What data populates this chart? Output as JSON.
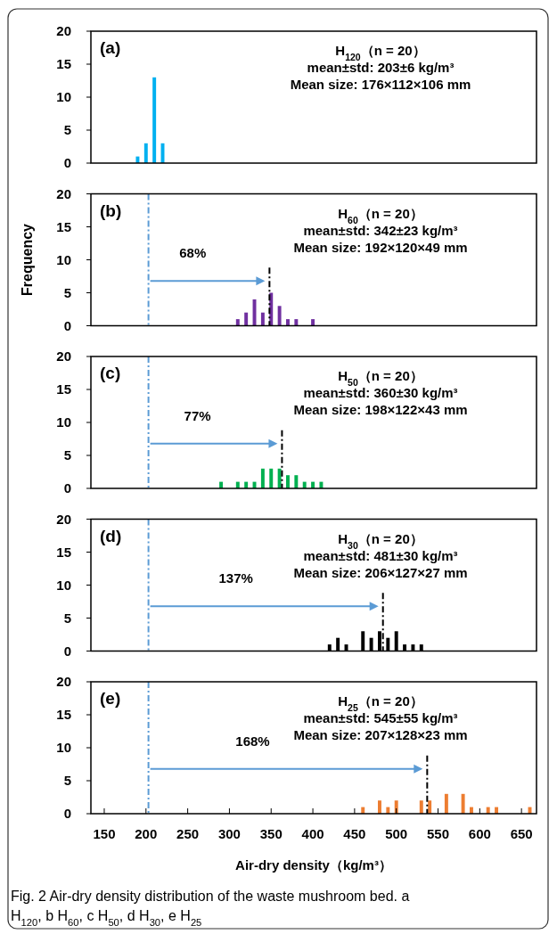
{
  "chart_data": [
    {
      "type": "bar",
      "title": "(a)",
      "x": [
        190,
        200,
        210,
        220
      ],
      "values": [
        1,
        3,
        13,
        3
      ],
      "color": "#00b0f0",
      "xlim": [
        134,
        668
      ],
      "ylim": [
        0,
        20
      ],
      "yticks": [
        0,
        5,
        10,
        15,
        20
      ],
      "tick_labels": "y",
      "annotations": [
        "H$_{120}$（n = 20）",
        "mean±std: 203±6 kg/m³",
        "Mean size: 176×112×106 mm"
      ]
    },
    {
      "type": "bar",
      "title": "(b)",
      "ylabel": "Frequency",
      "x": [
        310,
        320,
        330,
        340,
        350,
        360,
        370,
        380,
        400
      ],
      "values": [
        1,
        2,
        4,
        2,
        5,
        3,
        1,
        1,
        1
      ],
      "color": "#7030a0",
      "xlim": [
        134,
        668
      ],
      "ylim": [
        0,
        20
      ],
      "yticks": [
        0,
        5,
        10,
        15,
        20
      ],
      "tick_labels": "y",
      "ref_lines": [
        {
          "axis": "x",
          "value": 203,
          "color": "#5b9bd5",
          "line_style": "dashed"
        },
        {
          "axis": "x",
          "value": 348,
          "color": "#000000",
          "line_style": "dashed"
        }
      ],
      "annotations": [
        "H$_{60}$（n = 20）",
        "mean±std: 342±23 kg/m³",
        "Mean size: 192×120×49 mm",
        "68%"
      ]
    },
    {
      "type": "bar",
      "title": "(c)",
      "x": [
        290,
        310,
        320,
        330,
        340,
        350,
        360,
        370,
        380,
        390,
        400,
        410
      ],
      "values": [
        1,
        1,
        1,
        1,
        3,
        3,
        3,
        2,
        2,
        1,
        1,
        1
      ],
      "color": "#00b050",
      "xlim": [
        134,
        668
      ],
      "ylim": [
        0,
        20
      ],
      "yticks": [
        0,
        5,
        10,
        15,
        20
      ],
      "tick_labels": "y",
      "ref_lines": [
        {
          "axis": "x",
          "value": 203,
          "color": "#5b9bd5",
          "line_style": "dashed"
        },
        {
          "axis": "x",
          "value": 363,
          "color": "#000000",
          "line_style": "dashed"
        }
      ],
      "annotations": [
        "H$_{50}$（n = 20）",
        "mean±std: 360±30 kg/m³",
        "Mean size: 198×122×43 mm",
        "77%"
      ]
    },
    {
      "type": "bar",
      "title": "(d)",
      "x": [
        420,
        430,
        440,
        460,
        470,
        480,
        490,
        500,
        510,
        520,
        530
      ],
      "values": [
        1,
        2,
        1,
        3,
        2,
        3,
        2,
        3,
        1,
        1,
        1
      ],
      "color": "#000000",
      "xlim": [
        134,
        668
      ],
      "ylim": [
        0,
        20
      ],
      "yticks": [
        0,
        5,
        10,
        15,
        20
      ],
      "tick_labels": "y",
      "ref_lines": [
        {
          "axis": "x",
          "value": 203,
          "color": "#5b9bd5",
          "line_style": "dashed"
        },
        {
          "axis": "x",
          "value": 484,
          "color": "#000000",
          "line_style": "dashed"
        }
      ],
      "annotations": [
        "H$_{30}$（n = 20）",
        "mean±std: 481±30 kg/m³",
        "Mean size: 206×127×27 mm",
        "137%"
      ]
    },
    {
      "type": "bar",
      "title": "(e)",
      "xlabel": "Air-dry density（kg/m³）",
      "x": [
        460,
        480,
        490,
        500,
        530,
        540,
        560,
        580,
        590,
        610,
        620,
        660
      ],
      "values": [
        1,
        2,
        1,
        2,
        2,
        2,
        3,
        3,
        1,
        1,
        1,
        1
      ],
      "color": "#ed7d31",
      "xlim": [
        134,
        668
      ],
      "ylim": [
        0,
        20
      ],
      "yticks": [
        0,
        5,
        10,
        15,
        20
      ],
      "xticks": [
        150,
        200,
        250,
        300,
        350,
        400,
        450,
        500,
        550,
        600,
        650
      ],
      "ref_lines": [
        {
          "axis": "x",
          "value": 203,
          "color": "#5b9bd5",
          "line_style": "dashed"
        },
        {
          "axis": "x",
          "value": 537,
          "color": "#000000",
          "line_style": "dashed"
        }
      ],
      "annotations": [
        "H$_{25}$（n = 20）",
        "mean±std: 545±55 kg/m³",
        "Mean size: 207×128×23 mm",
        "168%",
        "Fig. 2  Air-dry density distribution of the waste mushroom bed. a H$_{120}$, b H$_{60}$, c H$_{50}$, d H$_{30}$, e H$_{25}$"
      ]
    }
  ]
}
